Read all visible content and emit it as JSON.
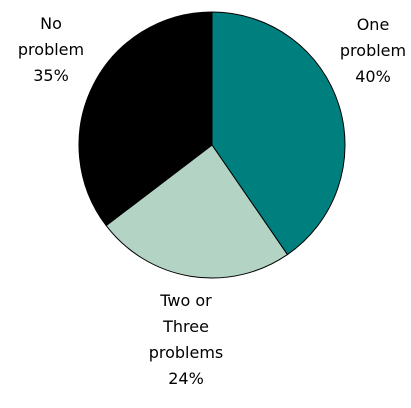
{
  "chart_data": {
    "type": "pie",
    "slices": [
      {
        "label_lines": [
          "One",
          "problem",
          "40%"
        ],
        "value": 40,
        "color": "#007f7f"
      },
      {
        "label_lines": [
          "Two or",
          "Three",
          "problems",
          "24%"
        ],
        "value": 24,
        "color": "#b3d4c4"
      },
      {
        "label_lines": [
          "No",
          "problem",
          "35%"
        ],
        "value": 35,
        "color": "#000000"
      }
    ],
    "start": "12 o'clock",
    "direction": "clockwise",
    "legend": "none",
    "data_labels": "outside"
  }
}
